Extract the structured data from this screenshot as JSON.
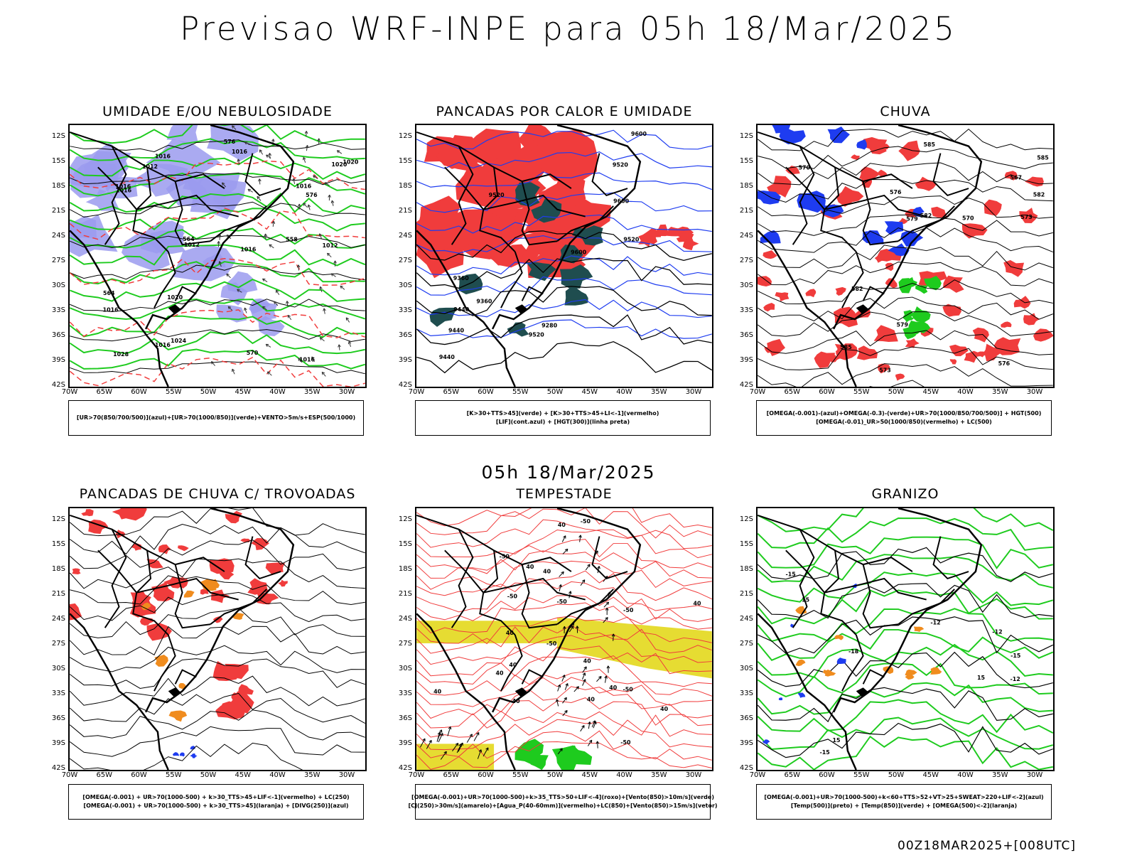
{
  "title": "Previsao WRF-INPE  para 05h 18/Mar/2025",
  "mid_label": "05h 18/Mar/2025",
  "footer": "00Z18MAR2025+[008UTC]",
  "colors": {
    "green": "#1ecb1e",
    "red": "#f03c3c",
    "blue": "#1e3cf0",
    "purple": "#9b9bef",
    "darkteal": "#1f4d4f",
    "yellow": "#e6dc32",
    "orange": "#f08c1e",
    "black": "#000000"
  },
  "chart_data": [
    {
      "type": "map",
      "title": "UMIDADE E/OU NEBULOSIDADE",
      "x_ticks": [
        "70W",
        "65W",
        "60W",
        "55W",
        "50W",
        "45W",
        "40W",
        "35W",
        "30W"
      ],
      "y_ticks": [
        "12S",
        "15S",
        "18S",
        "21S",
        "24S",
        "27S",
        "30S",
        "33S",
        "36S",
        "39S",
        "42S"
      ],
      "x_range": [
        -70,
        -28
      ],
      "y_range": [
        -42,
        -10
      ],
      "contour_labels": [
        "1012",
        "1012",
        "1012",
        "1016",
        "1016",
        "1016",
        "1016",
        "1016",
        "1020",
        "1020",
        "1016",
        "1016",
        "1016",
        "1020",
        "1024",
        "1016",
        "1028",
        "576",
        "576",
        "570",
        "564",
        "564",
        "558"
      ],
      "legend": [
        "[UR>70(850/700/500)](azul)+[UR>70(1000/850)](verde)+VENTO>5m/s+ESP(500/1000)"
      ]
    },
    {
      "type": "map",
      "title": "PANCADAS POR CALOR E UMIDADE",
      "x_ticks": [
        "70W",
        "65W",
        "60W",
        "55W",
        "50W",
        "45W",
        "40W",
        "35W",
        "30W"
      ],
      "y_ticks": [
        "12S",
        "15S",
        "18S",
        "21S",
        "24S",
        "27S",
        "30S",
        "33S",
        "36S",
        "39S",
        "42S"
      ],
      "x_range": [
        -70,
        -28
      ],
      "y_range": [
        -42,
        -10
      ],
      "contour_labels": [
        "9600",
        "9520",
        "9600",
        "9520",
        "9600",
        "9520",
        "9440",
        "9520",
        "9440",
        "9360",
        "9360",
        "9440",
        "9280"
      ],
      "legend": [
        "[K>30+TTS>45](verde) + [K>30+TTS>45+LI<-1](vermelho)",
        "[LIF](cont.azul) + [HGT(300)](linha preta)"
      ]
    },
    {
      "type": "map",
      "title": "CHUVA",
      "x_ticks": [
        "70W",
        "65W",
        "60W",
        "55W",
        "50W",
        "45W",
        "40W",
        "35W",
        "30W"
      ],
      "y_ticks": [
        "12S",
        "15S",
        "18S",
        "21S",
        "24S",
        "27S",
        "30S",
        "33S",
        "36S",
        "39S",
        "42S"
      ],
      "x_range": [
        -70,
        -28
      ],
      "y_range": [
        -42,
        -10
      ],
      "contour_labels": [
        "585",
        "585",
        "585",
        "582",
        "582",
        "582",
        "579",
        "579",
        "576",
        "576",
        "573",
        "573",
        "570",
        "570",
        "567"
      ],
      "legend": [
        "[OMEGA(-0.001)-(azul)+OMEGA(-0.3)-(verde)+UR>70(1000/850/700/500)] + HGT(500)",
        "[OMEGA(-0.01)_UR>50(1000/850)(vermelho) + LC(500)"
      ]
    },
    {
      "type": "map",
      "title": "PANCADAS DE CHUVA C/ TROVOADAS",
      "x_ticks": [
        "70W",
        "65W",
        "60W",
        "55W",
        "50W",
        "45W",
        "40W",
        "35W",
        "30W"
      ],
      "y_ticks": [
        "12S",
        "15S",
        "18S",
        "21S",
        "24S",
        "27S",
        "30S",
        "33S",
        "36S",
        "39S",
        "42S"
      ],
      "x_range": [
        -70,
        -28
      ],
      "y_range": [
        -42,
        -10
      ],
      "contour_labels": [],
      "legend": [
        "[OMEGA(-0.001) + UR>70(1000-500) + k>30_TTS>45+LIF<-1](vermelho) + LC(250)",
        "[OMEGA(-0.001) + UR>70(1000-500) + k>30_TTS>45](laranja) + [DIVG(250)](azul)"
      ]
    },
    {
      "type": "map",
      "title": "TEMPESTADE",
      "x_ticks": [
        "70W",
        "65W",
        "60W",
        "55W",
        "50W",
        "45W",
        "40W",
        "35W",
        "30W"
      ],
      "y_ticks": [
        "12S",
        "15S",
        "18S",
        "21S",
        "24S",
        "27S",
        "30S",
        "33S",
        "36S",
        "39S",
        "42S"
      ],
      "x_range": [
        -70,
        -28
      ],
      "y_range": [
        -42,
        -10
      ],
      "contour_labels": [
        "40",
        "40",
        "40",
        "40",
        "40",
        "40",
        "40",
        "40",
        "40",
        "40",
        "40",
        "40",
        "40",
        "-50",
        "-50",
        "-50",
        "-50",
        "-50",
        "-50",
        "-50",
        "-50"
      ],
      "legend": [
        "[OMEGA(-0.001)+UR>70(1000-500)+k>35_TTS>50+LIF<-4](roxo)+[Vento(850)>10m/s](verde)",
        "[CJ(250)>30m/s](amarelo)+[Agua_P(40-60mm)](vermelho)+LC(850)+[Vento(850)>15m/s](vetor)"
      ]
    },
    {
      "type": "map",
      "title": "GRANIZO",
      "x_ticks": [
        "70W",
        "65W",
        "60W",
        "55W",
        "50W",
        "45W",
        "40W",
        "35W",
        "30W"
      ],
      "y_ticks": [
        "12S",
        "15S",
        "18S",
        "21S",
        "24S",
        "27S",
        "30S",
        "33S",
        "36S",
        "39S",
        "42S"
      ],
      "x_range": [
        -70,
        -28
      ],
      "y_range": [
        -42,
        -10
      ],
      "contour_labels": [
        "-12",
        "-12",
        "-15",
        "-15",
        "-18",
        "-15",
        "-12",
        "15",
        "15",
        "15"
      ],
      "legend": [
        "[OMEGA(-0.001)+UR>70(1000-500)+k<60+TTS>52+VT>25+SWEAT>220+LIF<-2](azul)",
        "[Temp(500)](preto) + [Temp(850)](verde) + [OMEGA(500)<-2](laranja)"
      ]
    }
  ]
}
